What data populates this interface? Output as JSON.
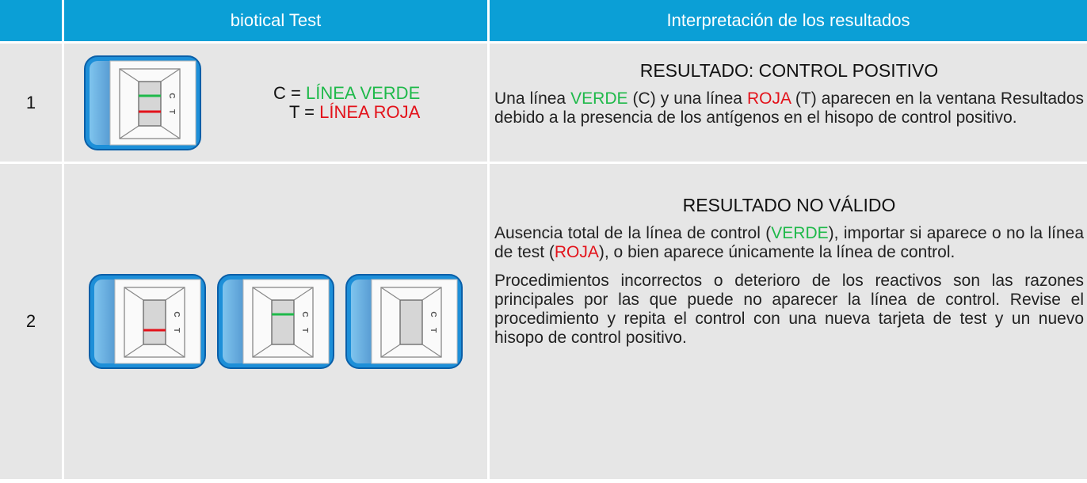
{
  "table": {
    "header": [
      "biotical Test",
      "Interpretación de los resultados"
    ],
    "cassette_letters": [
      "C",
      "T"
    ],
    "rows": [
      {
        "number": "1",
        "cassettes": [
          {
            "control_line": true,
            "test_line": true
          }
        ],
        "legend": [
          [
            {
              "text": "C = "
            },
            {
              "text": "LÍNEA VERDE",
              "color": "#1fb94a"
            }
          ],
          [
            {
              "text": "T = "
            },
            {
              "text": "LÍNEA ROJA",
              "color": "#e3121a"
            }
          ]
        ],
        "title": "RESULTADO: CONTROL POSITIVO",
        "paragraphs": [
          [
            {
              "text": "Una línea "
            },
            {
              "text": "VERDE",
              "color": "#1fb94a"
            },
            {
              "text": " (C) y una línea "
            },
            {
              "text": "ROJA",
              "color": "#e3121a"
            },
            {
              "text": " (T) aparecen en la ventana Resultados debido a la presencia de los antígenos en el hisopo de control positivo."
            }
          ]
        ]
      },
      {
        "number": "2",
        "cassettes": [
          {
            "control_line": false,
            "test_line": true
          },
          {
            "control_line": true,
            "test_line": false
          },
          {
            "control_line": false,
            "test_line": false
          }
        ],
        "title": "RESULTADO NO VÁLIDO",
        "paragraphs": [
          [
            {
              "text": "Ausencia total de la línea de control ("
            },
            {
              "text": "VERDE",
              "color": "#1fb94a"
            },
            {
              "text": "), importar si aparece o no la línea de test ("
            },
            {
              "text": "ROJA",
              "color": "#e3121a"
            },
            {
              "text": "), o bien aparece únicamente la línea de control."
            }
          ],
          [
            {
              "text": "Procedimientos incorrectos o deterioro de los reactivos son las razones principales por las que puede no aparecer la línea de control. Revise el procedimiento y repita el control con una nueva tarjeta de test y un nuevo hisopo de control positivo."
            }
          ]
        ]
      }
    ]
  }
}
